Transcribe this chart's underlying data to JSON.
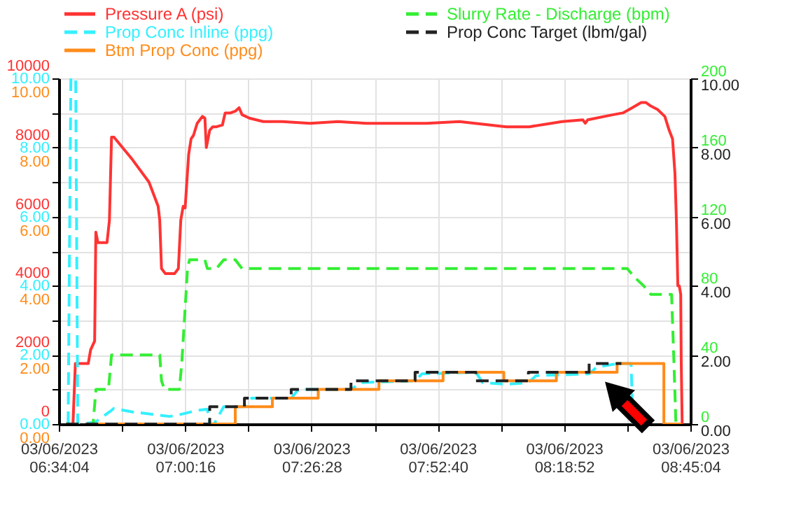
{
  "chart_data": {
    "type": "line",
    "legend": "top left",
    "grid": true,
    "xlim": [
      "2023-03-06T06:34:04",
      "2023-03-06T08:45:04"
    ],
    "xticks": [
      {
        "value": "2023-03-06T06:34:04",
        "label": "03/06/2023\n06:34:04"
      },
      {
        "value": "2023-03-06T06:47:10",
        "label": null
      },
      {
        "value": "2023-03-06T07:00:16",
        "label": "03/06/2023\n07:00:16"
      },
      {
        "value": "2023-03-06T07:13:22",
        "label": null
      },
      {
        "value": "2023-03-06T07:26:28",
        "label": "03/06/2023\n07:26:28"
      },
      {
        "value": "2023-03-06T07:39:34",
        "label": null
      },
      {
        "value": "2023-03-06T07:52:40",
        "label": "03/06/2023\n07:52:40"
      },
      {
        "value": "2023-03-06T08:05:46",
        "label": null
      },
      {
        "value": "2023-03-06T08:18:52",
        "label": "03/06/2023\n08:18:52"
      },
      {
        "value": "2023-03-06T08:31:58",
        "label": null
      },
      {
        "value": "2023-03-06T08:45:04",
        "label": "03/06/2023\n08:45:04"
      }
    ],
    "ylim": [
      0,
      10000
    ],
    "yticks": [
      0,
      {
        "value": 1000,
        "label": null
      },
      2000,
      {
        "value": 3000,
        "label": null
      },
      4000,
      {
        "value": 5000,
        "label": null
      },
      6000,
      {
        "value": 7000,
        "label": null
      },
      8000,
      {
        "value": 9000,
        "label": null
      },
      10000
    ],
    "y2lim": [
      0,
      10
    ],
    "y2ticks": [
      {
        "value": 0,
        "label": "0.00"
      },
      {
        "value": 2,
        "label": "2.00"
      },
      {
        "value": 4,
        "label": "4.00"
      },
      {
        "value": 6,
        "label": "6.00"
      },
      {
        "value": 8,
        "label": "8.00"
      },
      {
        "value": 10,
        "label": "10.00"
      }
    ],
    "y3lim": [
      0,
      200
    ],
    "y3ticks": [
      0,
      40,
      80,
      120,
      160,
      200
    ],
    "series": [
      {
        "name": "Pressure A (psi)",
        "axis": "y",
        "color": "#ff3333",
        "line_style": "solid",
        "x": [
          "2023-03-06T06:36:16",
          "2023-03-06T06:37:00",
          "2023-03-06T06:37:30",
          "2023-03-06T06:40:10",
          "2023-03-06T06:40:40",
          "2023-03-06T06:41:30",
          "2023-03-06T06:41:45",
          "2023-03-06T06:42:10",
          "2023-03-06T06:44:04",
          "2023-03-06T06:44:34",
          "2023-03-06T06:45:00",
          "2023-03-06T06:45:30",
          "2023-03-06T06:49:20",
          "2023-03-06T06:52:46",
          "2023-03-06T06:54:40",
          "2023-03-06T06:55:00",
          "2023-03-06T06:55:22",
          "2023-03-06T06:56:10",
          "2023-03-06T06:58:04",
          "2023-03-06T06:58:52",
          "2023-03-06T06:59:22",
          "2023-03-06T06:59:52",
          "2023-03-06T07:00:16",
          "2023-03-06T07:01:00",
          "2023-03-06T07:01:30",
          "2023-03-06T07:02:00",
          "2023-03-06T07:02:46",
          "2023-03-06T07:03:52",
          "2023-03-06T07:04:22",
          "2023-03-06T07:04:40",
          "2023-03-06T07:05:22",
          "2023-03-06T07:06:00",
          "2023-03-06T07:06:46",
          "2023-03-06T07:08:00",
          "2023-03-06T07:08:34",
          "2023-03-06T07:09:40",
          "2023-03-06T07:10:40",
          "2023-03-06T07:11:28",
          "2023-03-06T07:12:04",
          "2023-03-06T07:13:34",
          "2023-03-06T07:16:28",
          "2023-03-06T07:20:22",
          "2023-03-06T07:26:10",
          "2023-03-06T07:32:00",
          "2023-03-06T07:37:46",
          "2023-03-06T07:45:34",
          "2023-03-06T07:50:22",
          "2023-03-06T07:57:10",
          "2023-03-06T08:06:52",
          "2023-03-06T08:11:40",
          "2023-03-06T08:18:28",
          "2023-03-06T08:22:46",
          "2023-03-06T08:23:16",
          "2023-03-06T08:23:46",
          "2023-03-06T08:29:04",
          "2023-03-06T08:31:04",
          "2023-03-06T08:33:00",
          "2023-03-06T08:34:52",
          "2023-03-06T08:35:52",
          "2023-03-06T08:36:52",
          "2023-03-06T08:38:16",
          "2023-03-06T08:39:46",
          "2023-03-06T08:40:40",
          "2023-03-06T08:41:22",
          "2023-03-06T08:41:52",
          "2023-03-06T08:42:10",
          "2023-03-06T08:42:28",
          "2023-03-06T08:42:46",
          "2023-03-06T08:43:04",
          "2023-03-06T08:43:10",
          "2023-03-06T08:43:22"
        ],
        "values": [
          0,
          0,
          1750,
          1750,
          2150,
          2400,
          5550,
          5250,
          5250,
          5900,
          8300,
          8300,
          7650,
          7000,
          6300,
          5900,
          4500,
          4350,
          4350,
          4500,
          5900,
          6300,
          6250,
          7800,
          8250,
          8350,
          8700,
          8900,
          8850,
          8000,
          8500,
          8600,
          8600,
          8650,
          9000,
          9000,
          9050,
          9150,
          8950,
          8850,
          8750,
          8750,
          8700,
          8750,
          8700,
          8700,
          8700,
          8750,
          8600,
          8600,
          8750,
          8800,
          8700,
          8800,
          8950,
          9000,
          9150,
          9300,
          9300,
          9200,
          9100,
          8900,
          8500,
          8250,
          7250,
          5900,
          4000,
          4000,
          3750,
          1850,
          0
        ]
      },
      {
        "name": "Prop Conc Inline (ppg)",
        "axis": "y2",
        "color": "#33f0ff",
        "line_style": "dashed",
        "x": [
          "2023-03-06T06:36:00",
          "2023-03-06T06:36:34",
          "2023-03-06T06:37:34",
          "2023-03-06T06:38:00",
          "2023-03-06T06:41:34",
          "2023-03-06T06:44:34",
          "2023-03-06T06:45:28",
          "2023-03-06T06:49:22",
          "2023-03-06T06:54:10",
          "2023-03-06T06:57:04",
          "2023-03-06T06:59:04",
          "2023-03-06T07:02:58",
          "2023-03-06T07:04:52",
          "2023-03-06T07:05:22",
          "2023-03-06T07:06:16",
          "2023-03-06T07:08:16",
          "2023-03-06T07:12:34",
          "2023-03-06T07:14:04",
          "2023-03-06T07:22:16",
          "2023-03-06T07:23:46",
          "2023-03-06T07:34:40",
          "2023-03-06T07:36:46",
          "2023-03-06T07:47:58",
          "2023-03-06T07:49:22",
          "2023-03-06T08:00:34",
          "2023-03-06T08:01:58",
          "2023-03-06T08:06:52",
          "2023-03-06T08:11:28",
          "2023-03-06T08:13:04",
          "2023-03-06T08:24:04",
          "2023-03-06T08:25:40",
          "2023-03-06T08:30:04",
          "2023-03-06T08:32:46",
          "2023-03-06T08:33:10"
        ],
        "values": [
          0,
          10,
          10,
          0,
          0.05,
          0.35,
          0.45,
          0.35,
          0.27,
          0.22,
          0.27,
          0.4,
          0.43,
          0,
          0,
          0.5,
          0.5,
          0.75,
          0.75,
          1.0,
          1.0,
          1.2,
          1.25,
          1.45,
          1.5,
          1.2,
          1.15,
          1.2,
          1.4,
          1.45,
          1.65,
          1.75,
          1.75,
          0
        ]
      },
      {
        "name": "Btm Prop Conc (ppg)",
        "type": "step",
        "axis": "y2",
        "color": "#ff8c1a",
        "line_style": "solid",
        "x": [
          "2023-03-06T06:41:34",
          "2023-03-06T07:10:40",
          "2023-03-06T07:18:22",
          "2023-03-06T07:27:52",
          "2023-03-06T07:40:28",
          "2023-03-06T07:53:46",
          "2023-03-06T08:06:22",
          "2023-03-06T08:17:16",
          "2023-03-06T08:29:52",
          "2023-03-06T08:39:34",
          "2023-03-06T08:43:10"
        ],
        "values": [
          0,
          0.5,
          0.75,
          1.0,
          1.25,
          1.5,
          1.25,
          1.5,
          1.75,
          0,
          0
        ]
      },
      {
        "name": "Slurry Rate - Discharge (bpm)",
        "axis": "y3",
        "color": "#33ee33",
        "line_style": "dashed",
        "x": [
          "2023-03-06T06:35:34",
          "2023-03-06T06:41:10",
          "2023-03-06T06:41:46",
          "2023-03-06T06:42:34",
          "2023-03-06T06:44:22",
          "2023-03-06T06:45:00",
          "2023-03-06T06:55:00",
          "2023-03-06T06:55:22",
          "2023-03-06T06:56:00",
          "2023-03-06T06:59:04",
          "2023-03-06T06:59:34",
          "2023-03-06T07:00:46",
          "2023-03-06T07:01:10",
          "2023-03-06T07:02:58",
          "2023-03-06T07:03:22",
          "2023-03-06T07:04:22",
          "2023-03-06T07:04:52",
          "2023-03-06T07:05:40",
          "2023-03-06T07:06:46",
          "2023-03-06T07:08:16",
          "2023-03-06T07:09:40",
          "2023-03-06T07:10:40",
          "2023-03-06T07:12:04",
          "2023-03-06T07:13:34",
          "2023-03-06T07:45:34",
          "2023-03-06T08:23:16",
          "2023-03-06T08:29:04",
          "2023-03-06T08:31:58",
          "2023-03-06T08:33:28",
          "2023-03-06T08:35:22",
          "2023-03-06T08:36:52",
          "2023-03-06T08:40:40",
          "2023-03-06T08:41:10",
          "2023-03-06T08:41:40",
          "2023-03-06T08:42:04"
        ],
        "values": [
          0,
          0,
          20,
          20,
          20,
          40,
          40,
          25,
          20,
          20,
          35,
          90,
          95,
          95,
          95,
          95,
          90,
          90,
          90,
          95,
          95,
          95,
          90,
          90,
          90,
          90,
          90,
          90,
          85,
          80,
          75,
          75,
          75,
          35,
          0
        ]
      },
      {
        "name": "Prop Conc Target (lbm/gal)",
        "type": "step",
        "axis": "y2",
        "color": "#222222",
        "line_style": "dashed",
        "x": [
          "2023-03-06T06:35:34",
          "2023-03-06T07:05:22",
          "2023-03-06T07:12:34",
          "2023-03-06T07:22:16",
          "2023-03-06T07:34:40",
          "2023-03-06T07:47:58",
          "2023-03-06T08:00:34",
          "2023-03-06T08:11:28",
          "2023-03-06T08:24:04",
          "2023-03-06T08:30:46"
        ],
        "values": [
          0,
          0.5,
          0.75,
          1.0,
          1.25,
          1.5,
          1.25,
          1.5,
          1.75,
          1.75
        ]
      }
    ]
  }
}
